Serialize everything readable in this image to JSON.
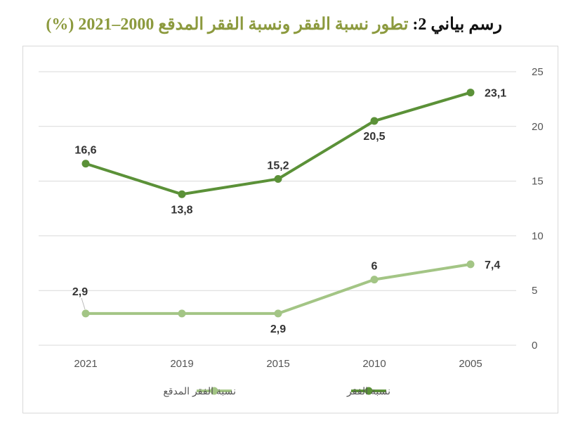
{
  "title": {
    "lead": "رسم بياني 2:",
    "rest": "تطور نسبة الفقر ونسبة الفقر المدقع 2000–2021 (%)"
  },
  "chart_data": {
    "type": "line",
    "categories": [
      "2021",
      "2019",
      "2015",
      "2010",
      "2005"
    ],
    "y_axis_position": "right",
    "ylim": [
      0,
      25
    ],
    "yticks": [
      "0",
      "5",
      "10",
      "15",
      "20",
      "25"
    ],
    "grid": true,
    "legend_position": "bottom",
    "series": [
      {
        "name": "نسبة الفقر",
        "color": "#5b9138",
        "values": [
          16.6,
          13.8,
          15.2,
          20.5,
          23.1
        ],
        "labels": [
          "16,6",
          "13,8",
          "15,2",
          "20,5",
          "23,1"
        ],
        "label_positions": [
          "above",
          "below",
          "above",
          "below",
          "right"
        ]
      },
      {
        "name": "نسبة الفقر المدقع",
        "color": "#a3c585",
        "values": [
          2.9,
          2.9,
          2.9,
          6,
          7.4
        ],
        "labels": [
          "2,9",
          "",
          "2,9",
          "6",
          "7,4"
        ],
        "label_positions": [
          "above-left",
          "none",
          "below",
          "above",
          "right"
        ]
      }
    ]
  }
}
